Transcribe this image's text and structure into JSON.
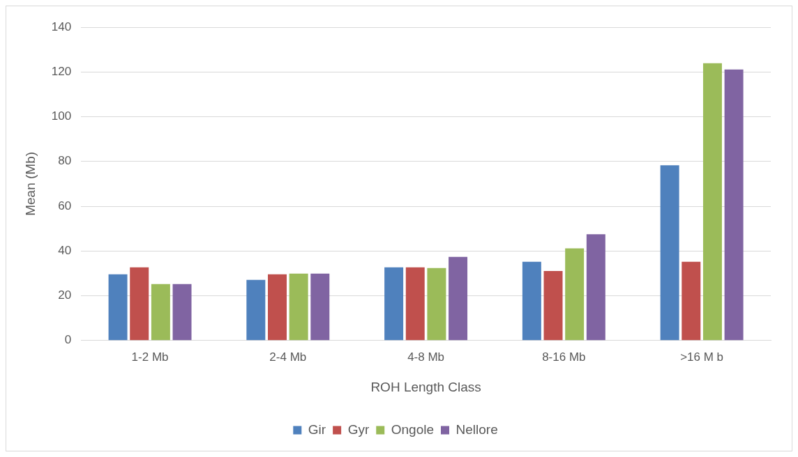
{
  "chart_data": {
    "type": "bar",
    "xlabel": "ROH Length Class",
    "ylabel": "Mean (Mb)",
    "categories": [
      "1-2 Mb",
      "2-4 Mb",
      "4-8 Mb",
      "8-16 Mb",
      ">16 M b"
    ],
    "series": [
      {
        "name": "Gir",
        "color": "#4f81bd",
        "values": [
          29.6,
          27.1,
          32.7,
          35.2,
          78.3
        ]
      },
      {
        "name": "Gyr",
        "color": "#c0504d",
        "values": [
          32.7,
          29.6,
          32.7,
          31.1,
          35.2
        ]
      },
      {
        "name": "Ongole",
        "color": "#9bbb59",
        "values": [
          25.2,
          29.9,
          32.4,
          41.2,
          123.9
        ]
      },
      {
        "name": "Nellore",
        "color": "#8064a2",
        "values": [
          25.2,
          29.9,
          37.4,
          47.5,
          121.1
        ]
      }
    ],
    "ylim": [
      0,
      140
    ],
    "yticks": [
      0,
      20,
      40,
      60,
      80,
      100,
      120,
      140
    ],
    "grid": "y",
    "legend": "bottom"
  }
}
